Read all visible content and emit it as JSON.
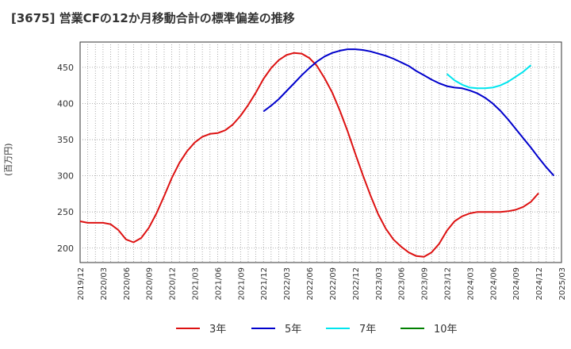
{
  "chart_data": {
    "type": "line",
    "title": "[3675]  営業CFの12か月移動合計の標準偏差の推移",
    "ylabel": "(百万円)",
    "xlabel": "",
    "ylim": [
      180,
      485
    ],
    "yticks": [
      200,
      250,
      300,
      350,
      400,
      450
    ],
    "xticks": [
      "2019/12",
      "2020/03",
      "2020/06",
      "2020/09",
      "2020/12",
      "2021/03",
      "2021/06",
      "2021/09",
      "2021/12",
      "2022/03",
      "2022/06",
      "2022/09",
      "2022/12",
      "2023/03",
      "2023/06",
      "2023/09",
      "2023/12",
      "2024/03",
      "2024/06",
      "2024/09",
      "2024/12",
      "2025/03"
    ],
    "grid": true,
    "legend_position": "bottom",
    "series": [
      {
        "name": "3年",
        "color": "#dd1111",
        "start_index": 0,
        "values": [
          237,
          235,
          235,
          235,
          233,
          225,
          212,
          208,
          214,
          228,
          248,
          272,
          297,
          318,
          334,
          346,
          354,
          358,
          359,
          363,
          371,
          383,
          398,
          415,
          434,
          449,
          460,
          467,
          470,
          469,
          463,
          452,
          435,
          415,
          390,
          362,
          331,
          301,
          273,
          247,
          227,
          212,
          202,
          194,
          189,
          188,
          194,
          206,
          224,
          237,
          244,
          248,
          250,
          250,
          250,
          250,
          251,
          253,
          257,
          264,
          276
        ]
      },
      {
        "name": "5年",
        "color": "#0000cc",
        "start_index": 24,
        "values": [
          389,
          397,
          406,
          417,
          428,
          439,
          449,
          458,
          465,
          470,
          473,
          475,
          475,
          474,
          472,
          469,
          466,
          462,
          457,
          452,
          445,
          439,
          433,
          428,
          424,
          422,
          421,
          418,
          414,
          408,
          400,
          390,
          378,
          365,
          352,
          339,
          325,
          312,
          300
        ]
      },
      {
        "name": "7年",
        "color": "#00e5ee",
        "start_index": 48,
        "values": [
          441,
          432,
          426,
          422,
          421,
          421,
          422,
          425,
          430,
          437,
          444,
          453
        ]
      },
      {
        "name": "10年",
        "color": "#008000",
        "start_index": 0,
        "values": []
      }
    ]
  }
}
